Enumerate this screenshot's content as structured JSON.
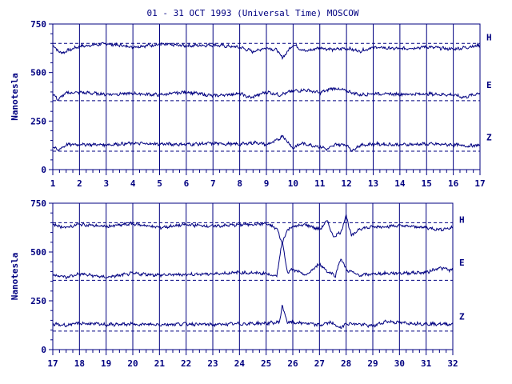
{
  "title": "01 - 31 OCT 1993 (Universal Time) MOSCOW",
  "colors": {
    "ink": "#000080",
    "background": "#ffffff"
  },
  "chart_data": [
    {
      "type": "line",
      "ylabel": "Nanotesla",
      "ylim": [
        0,
        750
      ],
      "yticks": [
        "0",
        "250",
        "500",
        "750"
      ],
      "xlim": [
        1,
        17
      ],
      "xticks": [
        "1",
        "2",
        "3",
        "4",
        "5",
        "6",
        "7",
        "8",
        "9",
        "10",
        "11",
        "12",
        "13",
        "14",
        "15",
        "16",
        "17"
      ],
      "grid": true,
      "baselines": [
        650,
        355,
        95
      ],
      "series": [
        {
          "name": "H",
          "values": [
            [
              1,
              640
            ],
            [
              1.3,
              600
            ],
            [
              2,
              635
            ],
            [
              3,
              648
            ],
            [
              4,
              632
            ],
            [
              5,
              645
            ],
            [
              6,
              638
            ],
            [
              7,
              642
            ],
            [
              8,
              630
            ],
            [
              8.5,
              608
            ],
            [
              9,
              628
            ],
            [
              9.4,
              615
            ],
            [
              9.6,
              575
            ],
            [
              10,
              645
            ],
            [
              10.3,
              620
            ],
            [
              10.5,
              610
            ],
            [
              11,
              628
            ],
            [
              11.5,
              618
            ],
            [
              12,
              625
            ],
            [
              12.5,
              610
            ],
            [
              13,
              630
            ],
            [
              14,
              622
            ],
            [
              15,
              632
            ],
            [
              16,
              620
            ],
            [
              16.5,
              630
            ],
            [
              17,
              640
            ]
          ]
        },
        {
          "name": "E",
          "values": [
            [
              1,
              390
            ],
            [
              1.2,
              360
            ],
            [
              1.5,
              395
            ],
            [
              2,
              398
            ],
            [
              3,
              388
            ],
            [
              4,
              392
            ],
            [
              5,
              385
            ],
            [
              6,
              400
            ],
            [
              7,
              380
            ],
            [
              8,
              392
            ],
            [
              8.4,
              370
            ],
            [
              9,
              400
            ],
            [
              9.5,
              385
            ],
            [
              10,
              405
            ],
            [
              10.5,
              410
            ],
            [
              11,
              395
            ],
            [
              11.5,
              420
            ],
            [
              12,
              405
            ],
            [
              12.5,
              385
            ],
            [
              13,
              392
            ],
            [
              14,
              388
            ],
            [
              15,
              390
            ],
            [
              16,
              385
            ],
            [
              16.4,
              372
            ],
            [
              17,
              395
            ]
          ]
        },
        {
          "name": "Z",
          "values": [
            [
              1,
              115
            ],
            [
              1.2,
              100
            ],
            [
              1.5,
              128
            ],
            [
              2,
              130
            ],
            [
              3,
              128
            ],
            [
              4,
              135
            ],
            [
              5,
              132
            ],
            [
              6,
              130
            ],
            [
              7,
              135
            ],
            [
              8,
              130
            ],
            [
              8.6,
              140
            ],
            [
              9,
              128
            ],
            [
              9.4,
              150
            ],
            [
              9.6,
              175
            ],
            [
              10,
              110
            ],
            [
              10.3,
              135
            ],
            [
              10.6,
              128
            ],
            [
              11,
              118
            ],
            [
              11.3,
              105
            ],
            [
              11.6,
              130
            ],
            [
              12,
              128
            ],
            [
              12.2,
              98
            ],
            [
              12.5,
              125
            ],
            [
              13,
              132
            ],
            [
              14,
              128
            ],
            [
              15,
              132
            ],
            [
              16,
              128
            ],
            [
              16.5,
              122
            ],
            [
              17,
              125
            ]
          ]
        }
      ]
    },
    {
      "type": "line",
      "ylabel": "Nanotesla",
      "ylim": [
        0,
        750
      ],
      "yticks": [
        "0",
        "250",
        "500",
        "750"
      ],
      "xlim": [
        17,
        32
      ],
      "xticks": [
        "17",
        "18",
        "19",
        "20",
        "21",
        "22",
        "23",
        "24",
        "25",
        "26",
        "27",
        "28",
        "29",
        "30",
        "31",
        "32"
      ],
      "grid": true,
      "baselines": [
        650,
        355,
        95
      ],
      "series": [
        {
          "name": "H",
          "values": [
            [
              17,
              640
            ],
            [
              17.5,
              625
            ],
            [
              18,
              642
            ],
            [
              19,
              630
            ],
            [
              20,
              645
            ],
            [
              21,
              625
            ],
            [
              22,
              640
            ],
            [
              23,
              632
            ],
            [
              24,
              640
            ],
            [
              25,
              645
            ],
            [
              25.4,
              620
            ],
            [
              25.6,
              545
            ],
            [
              25.8,
              615
            ],
            [
              26,
              630
            ],
            [
              26.5,
              640
            ],
            [
              27,
              615
            ],
            [
              27.3,
              660
            ],
            [
              27.5,
              580
            ],
            [
              27.8,
              600
            ],
            [
              28,
              690
            ],
            [
              28.2,
              580
            ],
            [
              28.5,
              620
            ],
            [
              29,
              628
            ],
            [
              30,
              635
            ],
            [
              31,
              625
            ],
            [
              31.5,
              615
            ],
            [
              32,
              625
            ]
          ]
        },
        {
          "name": "E",
          "values": [
            [
              17,
              385
            ],
            [
              17.5,
              370
            ],
            [
              18,
              388
            ],
            [
              19,
              370
            ],
            [
              20,
              390
            ],
            [
              21,
              382
            ],
            [
              22,
              385
            ],
            [
              23,
              388
            ],
            [
              24,
              395
            ],
            [
              25,
              390
            ],
            [
              25.4,
              375
            ],
            [
              25.6,
              560
            ],
            [
              25.8,
              395
            ],
            [
              26,
              410
            ],
            [
              26.5,
              380
            ],
            [
              27,
              440
            ],
            [
              27.3,
              400
            ],
            [
              27.6,
              380
            ],
            [
              27.8,
              470
            ],
            [
              28,
              410
            ],
            [
              28.5,
              380
            ],
            [
              29,
              388
            ],
            [
              30,
              392
            ],
            [
              31,
              395
            ],
            [
              31.5,
              420
            ],
            [
              32,
              405
            ]
          ]
        },
        {
          "name": "Z",
          "values": [
            [
              17,
              130
            ],
            [
              17.5,
              125
            ],
            [
              18,
              135
            ],
            [
              19,
              128
            ],
            [
              20,
              130
            ],
            [
              21,
              128
            ],
            [
              22,
              132
            ],
            [
              23,
              128
            ],
            [
              24,
              132
            ],
            [
              25,
              135
            ],
            [
              25.5,
              140
            ],
            [
              25.6,
              225
            ],
            [
              25.8,
              140
            ],
            [
              26,
              138
            ],
            [
              26.5,
              135
            ],
            [
              27,
              125
            ],
            [
              27.4,
              140
            ],
            [
              27.8,
              110
            ],
            [
              28,
              135
            ],
            [
              28.5,
              130
            ],
            [
              29,
              120
            ],
            [
              29.5,
              145
            ],
            [
              30,
              138
            ],
            [
              31,
              132
            ],
            [
              32,
              130
            ]
          ]
        }
      ]
    }
  ]
}
